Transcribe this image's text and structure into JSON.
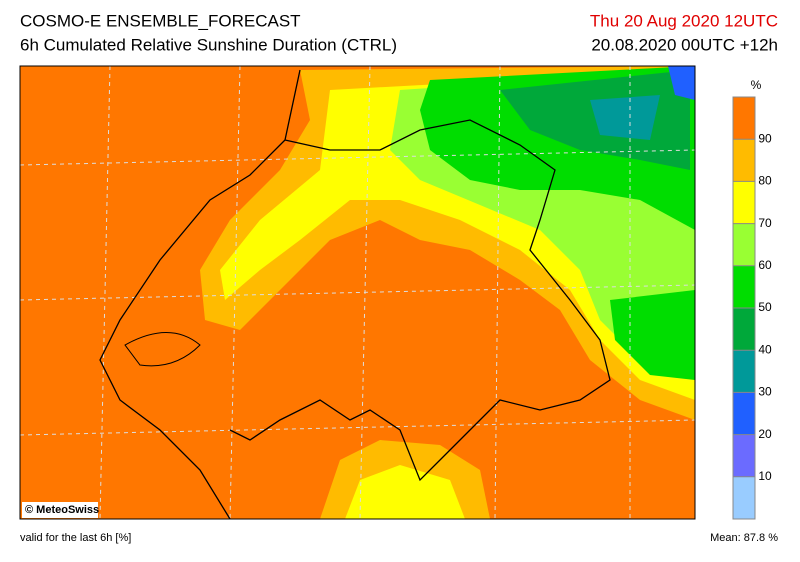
{
  "header": {
    "title": "COSMO-E ENSEMBLE_FORECAST",
    "subtitle": "6h Cumulated Relative Sunshine Duration (CTRL)",
    "valid_time": "Thu 20 Aug 2020 12UTC",
    "run": "20.08.2020 00UTC +12h"
  },
  "map": {
    "copyright": "© MeteoSwiss"
  },
  "colorbar": {
    "unit": "%",
    "range": [
      0,
      100
    ],
    "ticks": [
      10,
      20,
      30,
      40,
      50,
      60,
      70,
      80,
      90
    ],
    "colors": [
      "#99ccff",
      "#6b6bff",
      "#2060ff",
      "#009999",
      "#00a83a",
      "#00dd00",
      "#99ff33",
      "#ffff00",
      "#ffbb00",
      "#ff7700"
    ]
  },
  "footer": {
    "left": "valid for the last 6h [%]",
    "right": "Mean:  87.8 %"
  }
}
